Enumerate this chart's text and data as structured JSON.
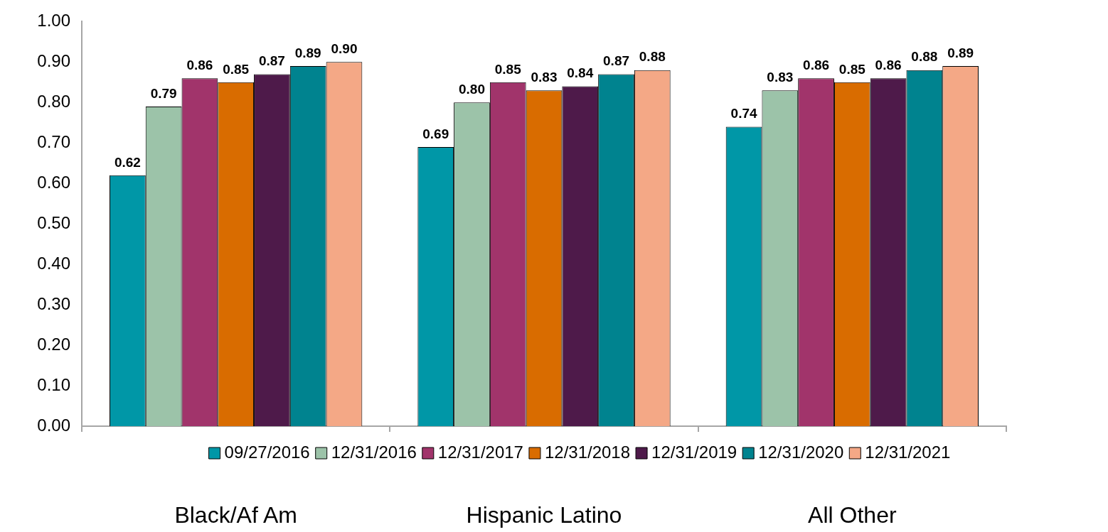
{
  "chart_data": {
    "type": "bar",
    "categories": [
      "Black/Af Am",
      "Hispanic Latino",
      "All Other"
    ],
    "series": [
      {
        "name": "09/27/2016",
        "color": "#0097a7",
        "values": [
          0.62,
          0.69,
          0.74
        ],
        "value_labels": [
          "0.62",
          "0.69",
          "0.74"
        ]
      },
      {
        "name": "12/31/2016",
        "color": "#9cc3a9",
        "values": [
          0.79,
          0.8,
          0.83
        ],
        "value_labels": [
          "0.79",
          "0.80",
          "0.83"
        ]
      },
      {
        "name": "12/31/2017",
        "color": "#a1346b",
        "values": [
          0.86,
          0.85,
          0.86
        ],
        "value_labels": [
          "0.86",
          "0.85",
          "0.86"
        ]
      },
      {
        "name": "12/31/2018",
        "color": "#d96c00",
        "values": [
          0.85,
          0.83,
          0.85
        ],
        "value_labels": [
          "0.85",
          "0.83",
          "0.85"
        ]
      },
      {
        "name": "12/31/2019",
        "color": "#4e1a4a",
        "values": [
          0.87,
          0.84,
          0.86
        ],
        "value_labels": [
          "0.87",
          "0.84",
          "0.86"
        ]
      },
      {
        "name": "12/31/2020",
        "color": "#00838f",
        "values": [
          0.89,
          0.87,
          0.88
        ],
        "value_labels": [
          "0.89",
          "0.87",
          "0.88"
        ]
      },
      {
        "name": "12/31/2021",
        "color": "#f4a886",
        "values": [
          0.9,
          0.88,
          0.89
        ],
        "value_labels": [
          "0.90",
          "0.88",
          "0.89"
        ]
      }
    ],
    "ylim": [
      0,
      1
    ],
    "yticks": [
      {
        "value": 0,
        "label": "0.00"
      },
      {
        "value": 0.1,
        "label": "0.10"
      },
      {
        "value": 0.2,
        "label": "0.20"
      },
      {
        "value": 0.3,
        "label": "0.30"
      },
      {
        "value": 0.4,
        "label": "0.40"
      },
      {
        "value": 0.5,
        "label": "0.50"
      },
      {
        "value": 0.6,
        "label": "0.60"
      },
      {
        "value": 0.7,
        "label": "0.70"
      },
      {
        "value": 0.8,
        "label": "0.80"
      },
      {
        "value": 0.9,
        "label": "0.90"
      },
      {
        "value": 1,
        "label": "1.00"
      }
    ],
    "grid": false,
    "legend": "bottom"
  }
}
